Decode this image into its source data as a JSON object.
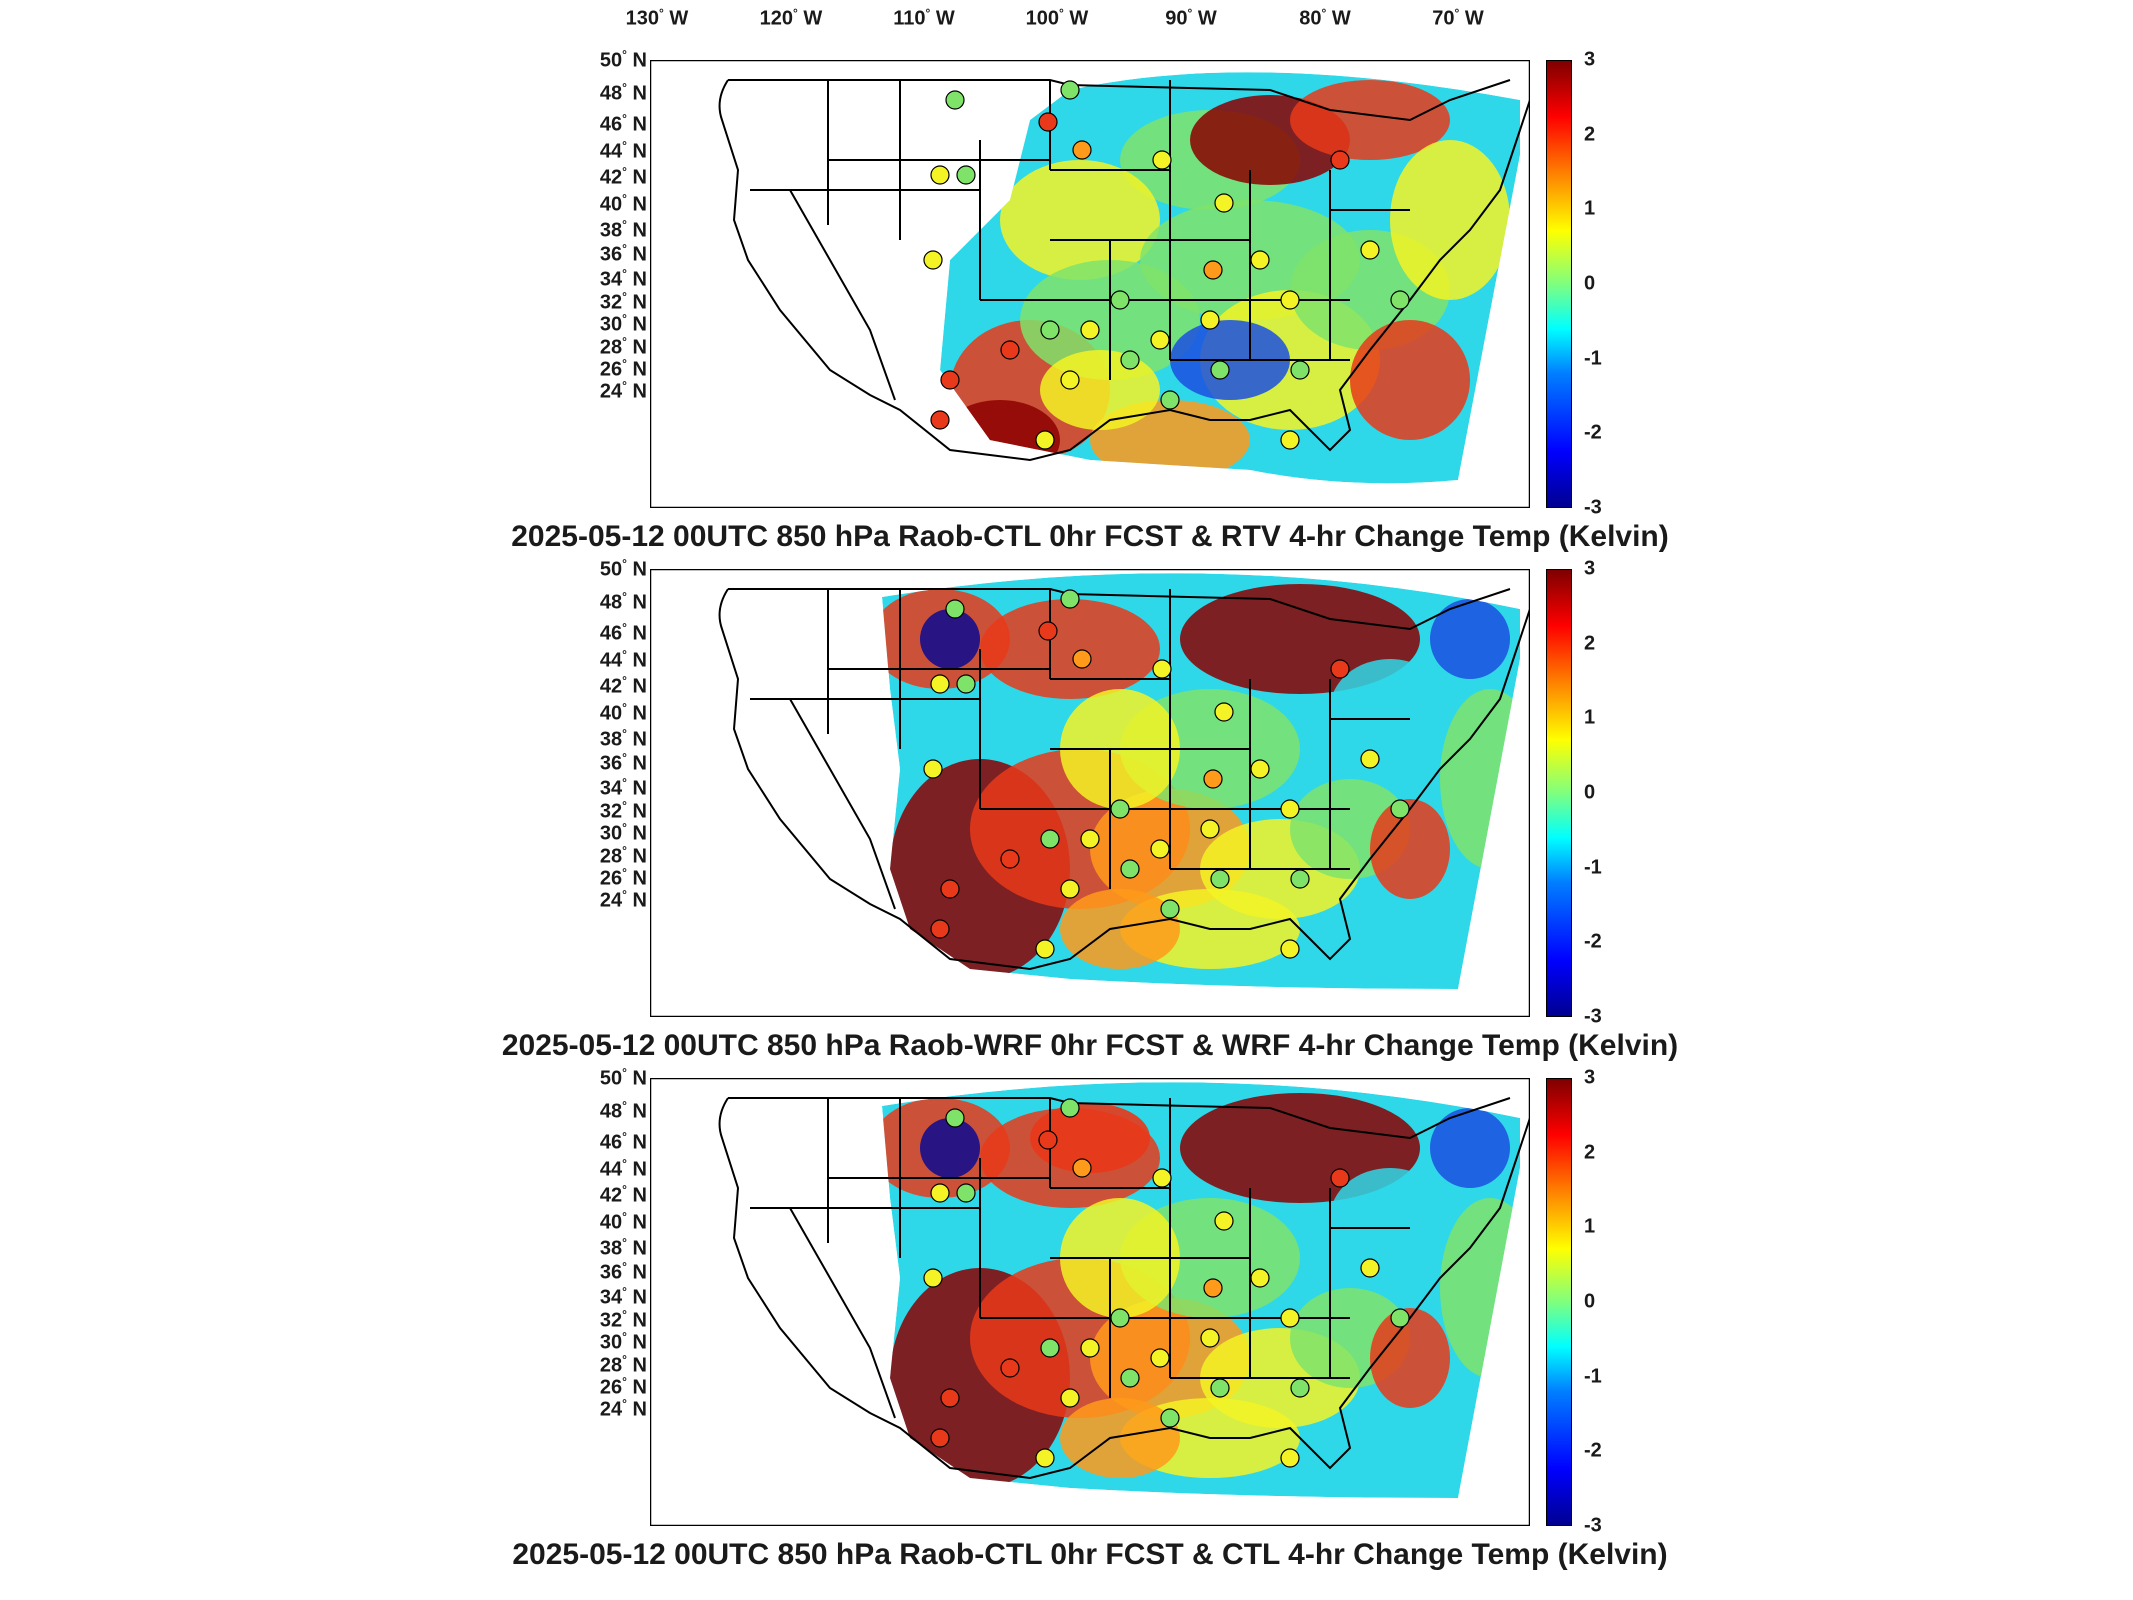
{
  "lon_labels": [
    "130",
    "120",
    "110",
    "100",
    "90",
    "80",
    "70"
  ],
  "lon_suffix": "W",
  "lat_labels": [
    "50",
    "48",
    "46",
    "44",
    "42",
    "40",
    "38",
    "36",
    "34",
    "32",
    "30",
    "28",
    "26",
    "24"
  ],
  "lat_suffix": "N",
  "degree_symbol": "°",
  "colorbar": {
    "ticks": [
      "3",
      "2",
      "1",
      "0",
      "-1",
      "-2",
      "-3"
    ],
    "range": [
      -3,
      3
    ],
    "colormap": "jet"
  },
  "panels": [
    {
      "title": "2025-05-12 00UTC 850 hPa Raob-CTL 0hr FCST & RTV 4-hr Change Temp (Kelvin)"
    },
    {
      "title": "2025-05-12 00UTC 850 hPa Raob-WRF 0hr FCST & WRF 4-hr Change Temp (Kelvin)"
    },
    {
      "title": "2025-05-12 00UTC 850 hPa Raob-CTL 0hr FCST & CTL 4-hr Change Temp (Kelvin)"
    }
  ],
  "colors": {
    "warm_dark": "#8b0000",
    "warm": "#e8391a",
    "orange": "#ff9a1a",
    "yellow": "#f3f325",
    "green": "#7fe36a",
    "cyan": "#2fd8e8",
    "blue": "#1b4fe0",
    "navy": "#0a0a90"
  }
}
